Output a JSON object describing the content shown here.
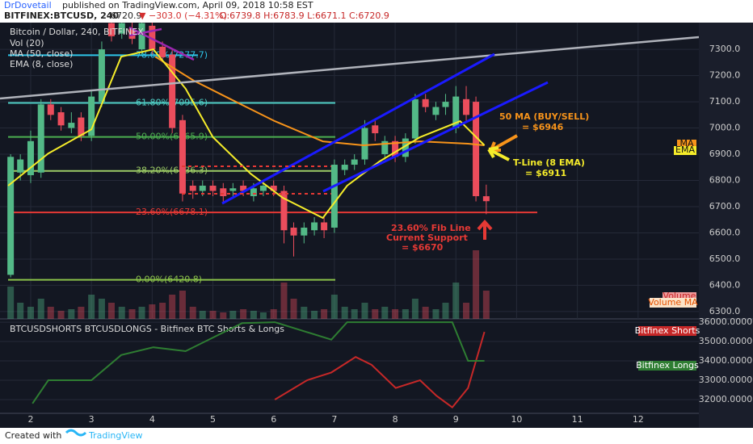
{
  "header": {
    "author": "DrDovetail",
    "published": "published on TradingView.com, April 09, 2018 10:58 EST",
    "symbol": "BITFINEX:BTCUSD, 240",
    "last": "6720.9",
    "change": "▼ −303.0 (−4.31%)",
    "ohlc": "O:6739.8 H:6783.9 L:6671.1 C:6720.9"
  },
  "legend": [
    "Bitcoin / Dollar, 240, BITFINEX",
    "Vol (20)",
    "MA (50, close)",
    "EMA (8, close)"
  ],
  "annotations": {
    "ma": [
      "50 MA (BUY/SELL)",
      "= $6946"
    ],
    "ema": [
      "T-Line (8 EMA)",
      "= $6911"
    ],
    "fib": [
      "23.60% Fib Line",
      "Current Support",
      "= $6670"
    ]
  },
  "tags": {
    "ma": "MA",
    "ema": "EMA",
    "volume": "Volume",
    "volume_ma": "Volume MA"
  },
  "footer": {
    "created": "Created with",
    "brand": "TradingView"
  },
  "chart_data": [
    {
      "type": "candlestick",
      "ylim": [
        6272,
        7402
      ],
      "xlim": [
        1.495,
        13.0
      ],
      "yticks": [
        {
          "value": 6300,
          "label": "6300.0"
        },
        {
          "value": 6400,
          "label": "6400.0"
        },
        {
          "value": 6500,
          "label": "6500.0"
        },
        {
          "value": 6600,
          "label": "6600.0"
        },
        {
          "value": 6700,
          "label": "6700.0"
        },
        {
          "value": 6800,
          "label": "6800.0"
        },
        {
          "value": 6900,
          "label": "6900.0"
        },
        {
          "value": 7000,
          "label": "7000.0"
        },
        {
          "value": 7100,
          "label": "7100.0"
        },
        {
          "value": 7200,
          "label": "7200.0"
        },
        {
          "value": 7300,
          "label": "7300.0"
        }
      ],
      "xticks": [
        2,
        3,
        4,
        5,
        6,
        7,
        8,
        9,
        10,
        11,
        12
      ],
      "up_color": "#53b987",
      "down_color": "#eb4d5c",
      "x": [
        1.67,
        1.83,
        2,
        2.17,
        2.33,
        2.5,
        2.67,
        2.83,
        3,
        3.17,
        3.33,
        3.5,
        3.67,
        3.83,
        4,
        4.17,
        4.33,
        4.5,
        4.67,
        4.83,
        5,
        5.17,
        5.33,
        5.5,
        5.67,
        5.83,
        6,
        6.17,
        6.33,
        6.5,
        6.67,
        6.83,
        7,
        7.17,
        7.33,
        7.5,
        7.67,
        7.83,
        8,
        8.17,
        8.33,
        8.5,
        8.67,
        8.83,
        9,
        9.17,
        9.33,
        9.5
      ],
      "open": [
        6440,
        6830,
        6820,
        6830,
        7090,
        7060,
        7000,
        7040,
        6970,
        7100,
        7400,
        7360,
        7380,
        7300,
        7390,
        7310,
        7280,
        7030,
        6780,
        6760,
        6780,
        6770,
        6760,
        6780,
        6740,
        6760,
        6780,
        6760,
        6620,
        6590,
        6610,
        6640,
        6620,
        6840,
        6860,
        6880,
        7010,
        6900,
        6950,
        6890,
        6960,
        7110,
        7050,
        7080,
        7000,
        7110,
        7100,
        6739.8
      ],
      "high": [
        6900,
        6900,
        6990,
        7110,
        7110,
        7080,
        7060,
        7060,
        7140,
        7330,
        7420,
        7420,
        7410,
        7420,
        7420,
        7330,
        7300,
        7050,
        6800,
        6800,
        6800,
        6790,
        6790,
        6800,
        6790,
        6800,
        6800,
        6780,
        6640,
        6640,
        6660,
        6660,
        6880,
        6880,
        6900,
        7030,
        7030,
        6970,
        6970,
        6980,
        7130,
        7130,
        7100,
        7130,
        7160,
        7160,
        7120,
        6783.9
      ],
      "low": [
        6430,
        6800,
        6790,
        6810,
        7030,
        6990,
        6980,
        6950,
        6950,
        7080,
        7330,
        7340,
        7320,
        7280,
        7280,
        7250,
        6980,
        6720,
        6730,
        6740,
        6740,
        6710,
        6740,
        6740,
        6720,
        6740,
        6740,
        6560,
        6510,
        6560,
        6590,
        6580,
        6600,
        6820,
        6840,
        6860,
        6950,
        6880,
        6870,
        6870,
        6940,
        7060,
        7030,
        7050,
        6980,
        7020,
        6720,
        6671.1
      ],
      "close": [
        6890,
        6880,
        6950,
        7090,
        7050,
        7010,
        7020,
        6970,
        7120,
        7300,
        7350,
        7400,
        7340,
        7400,
        7300,
        7270,
        7000,
        6750,
        6760,
        6780,
        6760,
        6740,
        6770,
        6760,
        6770,
        6780,
        6760,
        6610,
        6590,
        6620,
        6640,
        6610,
        6860,
        6860,
        6880,
        7000,
        6980,
        6950,
        6890,
        6960,
        7110,
        7080,
        7080,
        7100,
        7120,
        7050,
        6740,
        6720.9
      ],
      "volume": [
        40,
        20,
        15,
        25,
        15,
        10,
        12,
        15,
        30,
        25,
        20,
        15,
        12,
        15,
        18,
        20,
        30,
        35,
        15,
        10,
        10,
        8,
        10,
        12,
        10,
        8,
        12,
        45,
        25,
        15,
        10,
        12,
        30,
        15,
        12,
        20,
        12,
        15,
        12,
        12,
        25,
        15,
        12,
        20,
        45,
        20,
        85,
        35
      ],
      "lines": [
        {
          "name": "MA (50, close)",
          "color": "#f7931a",
          "x": [
            4.05,
            4.69,
            5.22,
            6.02,
            6.81,
            7.48,
            8.41,
            9.2,
            9.47
          ],
          "values": [
            7272,
            7180,
            7118,
            7026,
            6949,
            6934,
            6949,
            6940,
            6934
          ]
        },
        {
          "name": "EMA (8, close)",
          "color": "#f5ec2a",
          "x": [
            1.63,
            2.29,
            3,
            3.49,
            4.02,
            4.55,
            5,
            5.62,
            6.15,
            6.81,
            7.21,
            7.74,
            8.41,
            9.07,
            9.47
          ],
          "values": [
            6780,
            6903,
            6995,
            7272,
            7300,
            7150,
            6965,
            6826,
            6734,
            6657,
            6780,
            6872,
            6965,
            7026,
            6934
          ]
        }
      ],
      "fib_levels": [
        {
          "label": "78.60%(7277.7)",
          "value": 7277.7,
          "color": "#2ec5e8"
        },
        {
          "label": "61.80%(7095.6)",
          "value": 7095.6,
          "color": "#4ecdc4"
        },
        {
          "label": "50.00%(6965.9)",
          "value": 6965.9,
          "color": "#4caf50"
        },
        {
          "label": "38.20%(6836.3)",
          "value": 6836.3,
          "color": "#9ccc65"
        },
        {
          "label": "23.60%(6678.1)",
          "value": 6678.1,
          "color": "#e53935"
        },
        {
          "label": "0.00%(6420.8)",
          "value": 6420.8,
          "color": "#8bc34a"
        }
      ]
    },
    {
      "type": "line",
      "title": "BTCUSDSHORTS BTCUSDLONGS - Bitfinex BTC Shorts & Longs",
      "ylim": [
        31290,
        36170
      ],
      "yticks": [
        {
          "value": 32000,
          "label": "32000.0000"
        },
        {
          "value": 33000,
          "label": "33000.0000"
        },
        {
          "value": 34000,
          "label": "34000.0000"
        },
        {
          "value": 35000,
          "label": "35000.0000"
        },
        {
          "value": 36000,
          "label": "36000.0000"
        }
      ],
      "series": [
        {
          "name": "Bitfinex Shorts",
          "color": "#c62828",
          "x": [
            6.02,
            6.55,
            6.95,
            7.35,
            7.61,
            8.01,
            8.41,
            8.68,
            8.94,
            9.2,
            9.47
          ],
          "values": [
            32000,
            33000,
            33400,
            34200,
            33800,
            32600,
            33000,
            32200,
            31600,
            32600,
            35500
          ]
        },
        {
          "name": "Bitfinex Longs",
          "color": "#2e7d32",
          "x": [
            2.03,
            2.29,
            3,
            3.49,
            4.02,
            4.55,
            5.48,
            6.02,
            6.95,
            7.21,
            8.94,
            9.2,
            9.47
          ],
          "values": [
            31800,
            33000,
            33000,
            34300,
            34700,
            34500,
            35950,
            36000,
            35100,
            36000,
            36000,
            34000,
            34000
          ]
        }
      ]
    }
  ]
}
